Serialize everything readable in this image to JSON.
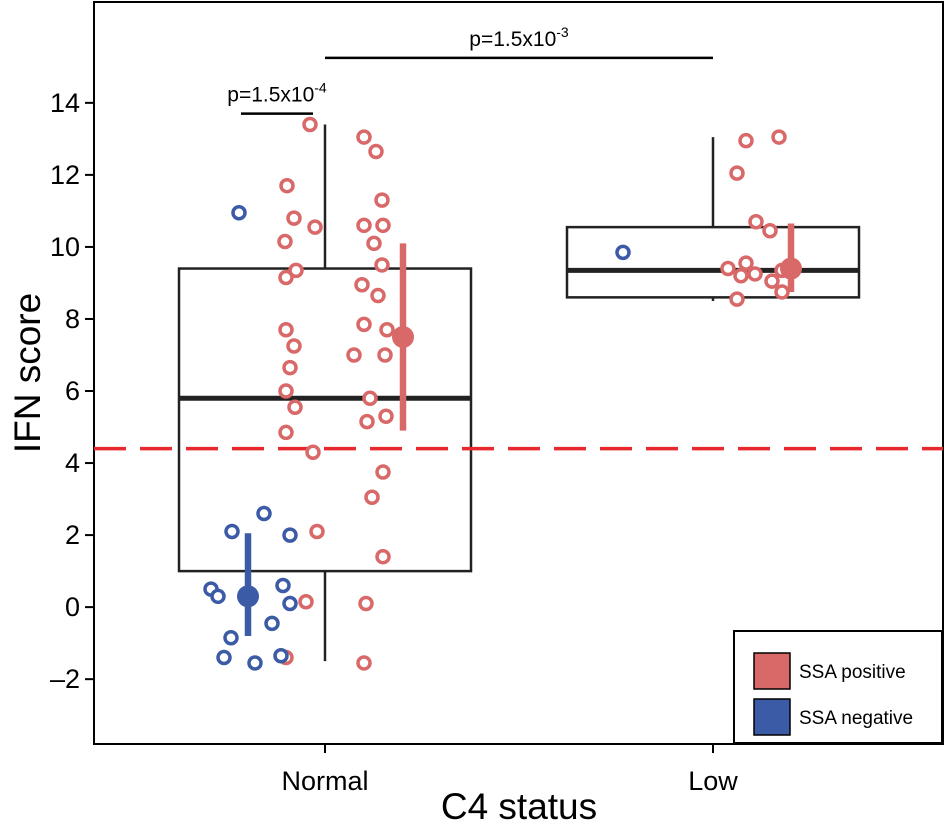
{
  "chart_data": {
    "type": "box-jitter",
    "xlabel": "C4 status",
    "ylabel": "IFN score",
    "categories": [
      "Normal",
      "Low"
    ],
    "ylim": [
      -3.8,
      16.8
    ],
    "yticks": [
      -2,
      0,
      2,
      4,
      6,
      8,
      10,
      12,
      14
    ],
    "ytick_labels": [
      "–2",
      "0",
      "2",
      "4",
      "6",
      "8",
      "10",
      "12",
      "14"
    ],
    "threshold": {
      "value": 4.4,
      "color": "#e8282d",
      "style": "dashed"
    },
    "boxes": [
      {
        "category": "Normal",
        "whisker_low": -1.5,
        "q1": 1.0,
        "median": 5.8,
        "q3": 9.4,
        "whisker_high": 13.4
      },
      {
        "category": "Low",
        "whisker_low": 8.5,
        "q1": 8.6,
        "median": 9.35,
        "q3": 10.55,
        "whisker_high": 13.05
      }
    ],
    "series": [
      {
        "name": "SSA positive",
        "color": "#d96868",
        "points": [
          {
            "category": "Normal",
            "offset": -0.75,
            "y": 13.4
          },
          {
            "category": "Normal",
            "offset": -1.9,
            "y": 11.7
          },
          {
            "category": "Normal",
            "offset": -1.55,
            "y": 10.8
          },
          {
            "category": "Normal",
            "offset": -2.0,
            "y": 10.15
          },
          {
            "category": "Normal",
            "offset": -0.5,
            "y": 10.55
          },
          {
            "category": "Normal",
            "offset": -1.45,
            "y": 9.35
          },
          {
            "category": "Normal",
            "offset": -1.95,
            "y": 9.15
          },
          {
            "category": "Normal",
            "offset": -1.95,
            "y": 7.7
          },
          {
            "category": "Normal",
            "offset": -1.55,
            "y": 7.25
          },
          {
            "category": "Normal",
            "offset": -1.75,
            "y": 6.65
          },
          {
            "category": "Normal",
            "offset": -1.95,
            "y": 6.0
          },
          {
            "category": "Normal",
            "offset": -1.5,
            "y": 5.55
          },
          {
            "category": "Normal",
            "offset": -1.95,
            "y": 4.85
          },
          {
            "category": "Normal",
            "offset": -0.6,
            "y": 4.3
          },
          {
            "category": "Normal",
            "offset": -0.4,
            "y": 2.1
          },
          {
            "category": "Normal",
            "offset": -0.95,
            "y": 0.15
          },
          {
            "category": "Normal",
            "offset": -1.95,
            "y": -1.4
          },
          {
            "category": "Normal",
            "offset": 1.95,
            "y": 13.05
          },
          {
            "category": "Normal",
            "offset": 2.55,
            "y": 12.65
          },
          {
            "category": "Normal",
            "offset": 2.85,
            "y": 11.3
          },
          {
            "category": "Normal",
            "offset": 1.95,
            "y": 10.6
          },
          {
            "category": "Normal",
            "offset": 2.9,
            "y": 10.6
          },
          {
            "category": "Normal",
            "offset": 2.45,
            "y": 10.1
          },
          {
            "category": "Normal",
            "offset": 2.85,
            "y": 9.5
          },
          {
            "category": "Normal",
            "offset": 1.85,
            "y": 8.95
          },
          {
            "category": "Normal",
            "offset": 2.65,
            "y": 8.65
          },
          {
            "category": "Normal",
            "offset": 1.95,
            "y": 7.85
          },
          {
            "category": "Normal",
            "offset": 3.1,
            "y": 7.7
          },
          {
            "category": "Normal",
            "offset": 1.45,
            "y": 7.0
          },
          {
            "category": "Normal",
            "offset": 3.0,
            "y": 7.0
          },
          {
            "category": "Normal",
            "offset": 2.25,
            "y": 5.8
          },
          {
            "category": "Normal",
            "offset": 3.05,
            "y": 5.3
          },
          {
            "category": "Normal",
            "offset": 2.1,
            "y": 5.15
          },
          {
            "category": "Normal",
            "offset": 2.9,
            "y": 3.75
          },
          {
            "category": "Normal",
            "offset": 2.35,
            "y": 3.05
          },
          {
            "category": "Normal",
            "offset": 2.9,
            "y": 1.4
          },
          {
            "category": "Normal",
            "offset": 2.05,
            "y": 0.1
          },
          {
            "category": "Normal",
            "offset": 1.95,
            "y": -1.55
          },
          {
            "category": "Low",
            "offset": 1.65,
            "y": 12.95
          },
          {
            "category": "Low",
            "offset": 3.3,
            "y": 13.05
          },
          {
            "category": "Low",
            "offset": 1.2,
            "y": 12.05
          },
          {
            "category": "Low",
            "offset": 2.15,
            "y": 10.7
          },
          {
            "category": "Low",
            "offset": 2.85,
            "y": 10.45
          },
          {
            "category": "Low",
            "offset": 0.75,
            "y": 9.4
          },
          {
            "category": "Low",
            "offset": 1.4,
            "y": 9.2
          },
          {
            "category": "Low",
            "offset": 2.1,
            "y": 9.25
          },
          {
            "category": "Low",
            "offset": 3.45,
            "y": 9.35
          },
          {
            "category": "Low",
            "offset": 2.95,
            "y": 9.05
          },
          {
            "category": "Low",
            "offset": 1.65,
            "y": 9.55
          },
          {
            "category": "Low",
            "offset": 3.45,
            "y": 8.75
          },
          {
            "category": "Low",
            "offset": 1.2,
            "y": 8.55
          }
        ]
      },
      {
        "name": "SSA negative",
        "color": "#3c5ba6",
        "points": [
          {
            "category": "Normal",
            "offset": -4.3,
            "y": 10.95
          },
          {
            "category": "Normal",
            "offset": -4.65,
            "y": 2.1
          },
          {
            "category": "Normal",
            "offset": -3.05,
            "y": 2.6
          },
          {
            "category": "Normal",
            "offset": -1.75,
            "y": 2.0
          },
          {
            "category": "Normal",
            "offset": -2.1,
            "y": 0.6
          },
          {
            "category": "Normal",
            "offset": -5.7,
            "y": 0.5
          },
          {
            "category": "Normal",
            "offset": -5.35,
            "y": 0.3
          },
          {
            "category": "Normal",
            "offset": -1.75,
            "y": 0.1
          },
          {
            "category": "Normal",
            "offset": -2.65,
            "y": -0.45
          },
          {
            "category": "Normal",
            "offset": -4.7,
            "y": -0.85
          },
          {
            "category": "Normal",
            "offset": -2.2,
            "y": -1.35
          },
          {
            "category": "Normal",
            "offset": -5.05,
            "y": -1.4
          },
          {
            "category": "Normal",
            "offset": -3.5,
            "y": -1.55
          },
          {
            "category": "Low",
            "offset": -4.5,
            "y": 9.85
          }
        ]
      }
    ],
    "group_summaries": [
      {
        "series": "SSA positive",
        "category": "Normal",
        "mean": 7.5,
        "low": 4.9,
        "high": 10.1
      },
      {
        "series": "SSA negative",
        "category": "Normal",
        "mean": 0.3,
        "low": -0.8,
        "high": 2.05
      },
      {
        "series": "SSA positive",
        "category": "Low",
        "mean": 9.4,
        "low": 8.75,
        "high": 10.65
      }
    ],
    "annotations": [
      {
        "text": "p=1.5x10",
        "exponent": "-4",
        "y": 13.7,
        "x_from_offset": -4.2,
        "x_to_offset": -0.6,
        "x_from_category": "Normal",
        "x_to_category": "Normal"
      },
      {
        "text": "p=1.5x10",
        "exponent": "-3",
        "y": 15.25,
        "x_from_offset": 0,
        "x_to_offset": 0,
        "x_from_category": "Normal",
        "x_to_category": "Low"
      }
    ],
    "legend": {
      "position": "bottom-right",
      "items": [
        {
          "label": "SSA positive",
          "color": "#d96868"
        },
        {
          "label": "SSA negative",
          "color": "#3c5ba6"
        }
      ]
    }
  }
}
